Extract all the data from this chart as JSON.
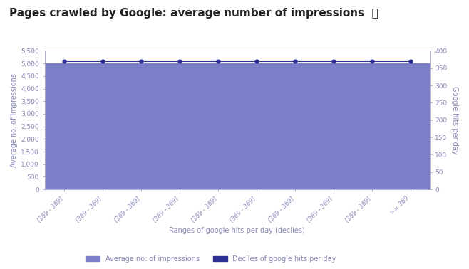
{
  "title": "Pages crawled by Google: average number of impressions  ⓘ",
  "title_fontsize": 11,
  "bar_color": "#7b7ec8",
  "line_color": "#2e3192",
  "bar_values": [
    5000,
    5000,
    5000,
    5000,
    5000,
    5000,
    5000,
    5000,
    5000,
    5000
  ],
  "line_values": [
    370,
    370,
    370,
    370,
    370,
    370,
    370,
    370,
    370,
    370
  ],
  "x_labels": [
    "[369 - 369]",
    "[369 - 369]",
    "[369 - 369]",
    "[369 - 369]",
    "[369 - 369]",
    "[369 - 369]",
    "[369 - 369]",
    "[369 - 369]",
    "[369 - 369]",
    ">= 369"
  ],
  "ylabel_left": "Average no. of impressions",
  "ylabel_right": "Google hits per day",
  "xlabel": "Ranges of google hits per day (deciles)",
  "ylim_left": [
    0,
    5500
  ],
  "ylim_right": [
    0,
    400
  ],
  "yticks_left": [
    0,
    500,
    1000,
    1500,
    2000,
    2500,
    3000,
    3500,
    4000,
    4500,
    5000,
    5500
  ],
  "yticks_right": [
    0,
    50,
    100,
    150,
    200,
    250,
    300,
    350,
    400
  ],
  "legend_label_bar": "Average no. of impressions",
  "legend_label_line": "Deciles of google hits per day",
  "background_color": "#ffffff",
  "axes_color": "#aaaacc",
  "tick_color": "#8888bb",
  "xlabel_color": "#8888bb",
  "ylabel_color": "#8888bb",
  "grid_color": "#d8d8ee",
  "title_color": "#222222"
}
